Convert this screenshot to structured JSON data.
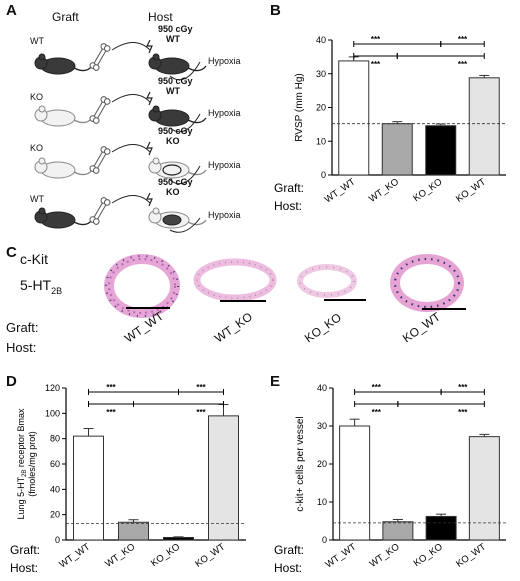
{
  "panels": {
    "A": {
      "letter": "A",
      "graft_header": "Graft",
      "host_header": "Host",
      "rows": [
        {
          "graft": "WT",
          "dose": "950 cGy",
          "host": "WT",
          "outcome": "Hypoxia"
        },
        {
          "graft": "KO",
          "dose": "950 cGy",
          "host": "WT",
          "outcome": "Hypoxia"
        },
        {
          "graft": "KO",
          "dose": "950 cGy",
          "host": "KO",
          "outcome": "Hypoxia"
        },
        {
          "graft": "WT",
          "dose": "950 cGy",
          "host": "KO",
          "outcome": "Hypoxia"
        }
      ]
    },
    "B": {
      "letter": "B"
    },
    "C": {
      "letter": "C",
      "stain1": "c-Kit",
      "stain2_base": "5-HT",
      "stain2_sub": "2B",
      "graft_label": "Graft:",
      "host_label": "Host:",
      "groups": [
        "WT_WT",
        "WT_KO",
        "KO_KO",
        "KO_WT"
      ]
    },
    "D": {
      "letter": "D"
    },
    "E": {
      "letter": "E"
    }
  },
  "chart_data": [
    {
      "id": "B",
      "type": "bar",
      "categories": [
        "WT_WT",
        "WT_KO",
        "KO_KO",
        "KO_WT"
      ],
      "values": [
        33.8,
        15.2,
        14.6,
        28.8
      ],
      "errors": [
        1.2,
        0.6,
        0.5,
        0.7
      ],
      "ylabel": "RVSP (mm Hg)",
      "ylim": [
        0,
        40
      ],
      "yticks": [
        "0",
        "10",
        "20",
        "30",
        "40"
      ],
      "baseline": 15.2,
      "graft_label": "Graft:",
      "host_label": "Host:",
      "significance": [
        "***",
        "***",
        "***",
        "***"
      ]
    },
    {
      "id": "D",
      "type": "bar",
      "categories": [
        "WT_WT",
        "WT_KO",
        "KO_KO",
        "KO_WT"
      ],
      "values": [
        82,
        14,
        2,
        98
      ],
      "errors": [
        6,
        2,
        0.5,
        9
      ],
      "ylabel_parts": [
        "Lung 5-HT",
        "2B",
        " receptor Bmax",
        "(fmoles/mg prot)"
      ],
      "ylim": [
        0,
        120
      ],
      "yticks": [
        "0",
        "20",
        "40",
        "60",
        "80",
        "100",
        "120"
      ],
      "baseline": 13,
      "graft_label": "Graft:",
      "host_label": "Host:",
      "significance": [
        "***",
        "***",
        "***",
        "***"
      ]
    },
    {
      "id": "E",
      "type": "bar",
      "categories": [
        "WT_WT",
        "WT_KO",
        "KO_KO",
        "KO_WT"
      ],
      "values": [
        30,
        4.8,
        6.2,
        27.2
      ],
      "errors": [
        1.8,
        0.6,
        0.6,
        0.6
      ],
      "ylabel": "c-kit+ cells per vessel",
      "ylim": [
        0,
        40
      ],
      "yticks": [
        "0",
        "10",
        "20",
        "30",
        "40"
      ],
      "baseline": 4.5,
      "graft_label": "Graft:",
      "host_label": "Host:",
      "significance": [
        "***",
        "***",
        "***",
        "***"
      ]
    }
  ]
}
